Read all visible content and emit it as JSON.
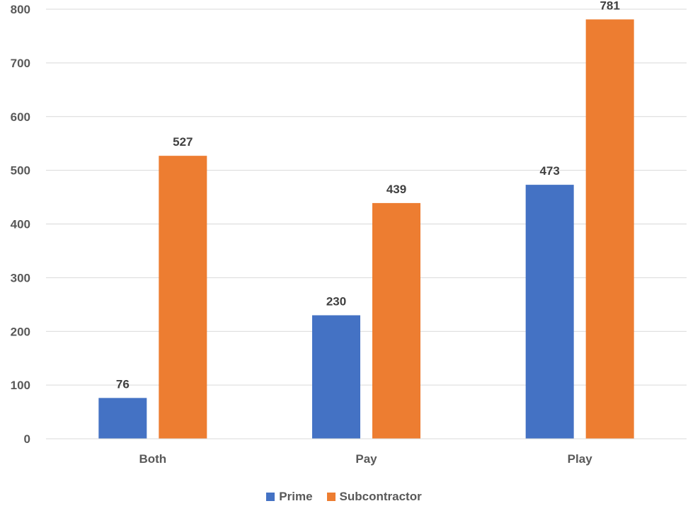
{
  "chart_data": {
    "type": "bar",
    "title": "",
    "xlabel": "",
    "ylabel": "",
    "categories": [
      "Both",
      "Pay",
      "Play"
    ],
    "series": [
      {
        "name": "Prime",
        "color": "#4472C4",
        "values": [
          76,
          230,
          473
        ]
      },
      {
        "name": "Subcontractor",
        "color": "#ED7D31",
        "values": [
          527,
          439,
          781
        ]
      }
    ],
    "ylim": [
      0,
      800
    ],
    "yticks": [
      "0",
      "100",
      "200",
      "300",
      "400",
      "500",
      "600",
      "700",
      "800"
    ],
    "grid": true,
    "legend_position": "bottom"
  }
}
